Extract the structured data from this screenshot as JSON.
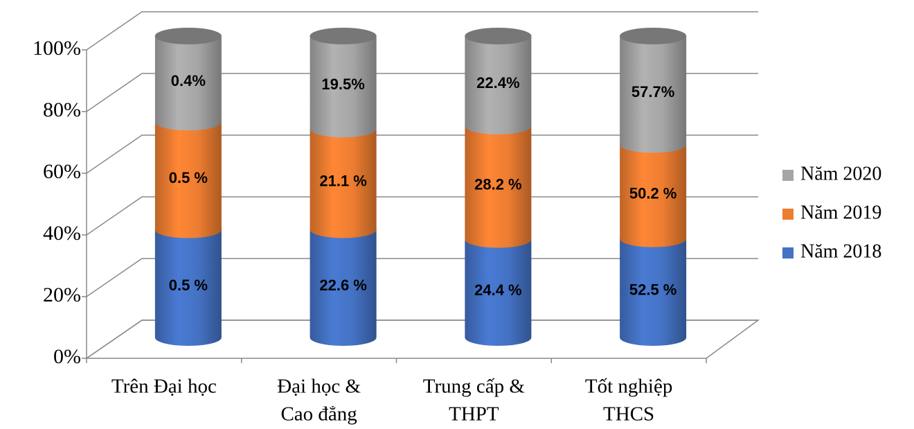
{
  "chart_data": {
    "type": "bar",
    "stacking": "percent",
    "projection": "3d-cylinder",
    "categories": [
      [
        "Trên Đại học"
      ],
      [
        "Đại học &",
        "Cao đẳng"
      ],
      [
        "Trung cấp &",
        "THPT"
      ],
      [
        "Tốt nghiệp",
        "THCS"
      ]
    ],
    "series": [
      {
        "name": "Năm 2018",
        "color": "#4472c4",
        "values": [
          0.5,
          22.6,
          24.4,
          52.5
        ],
        "value_labels": [
          "0.5 %",
          "22.6 %",
          "24.4 %",
          "52.5 %"
        ]
      },
      {
        "name": "Năm 2019",
        "color": "#ed7d31",
        "values": [
          0.5,
          21.1,
          28.2,
          50.2
        ],
        "value_labels": [
          "0.5 %",
          "21.1 %",
          "28.2 %",
          "50.2 %"
        ]
      },
      {
        "name": "Năm 2020",
        "color": "#a5a5a5",
        "values": [
          0.4,
          19.5,
          22.4,
          57.7
        ],
        "value_labels": [
          "0.4%",
          "19.5%",
          "22.4%",
          "57.7%"
        ]
      }
    ],
    "ylim": [
      0,
      100
    ],
    "yticks": [
      {
        "value": 0,
        "label": "0%"
      },
      {
        "value": 20,
        "label": "20%"
      },
      {
        "value": 40,
        "label": "40%"
      },
      {
        "value": 60,
        "label": "60%"
      },
      {
        "value": 80,
        "label": "80%"
      },
      {
        "value": 100,
        "label": "100%"
      }
    ],
    "grid": true,
    "legend": "right"
  }
}
